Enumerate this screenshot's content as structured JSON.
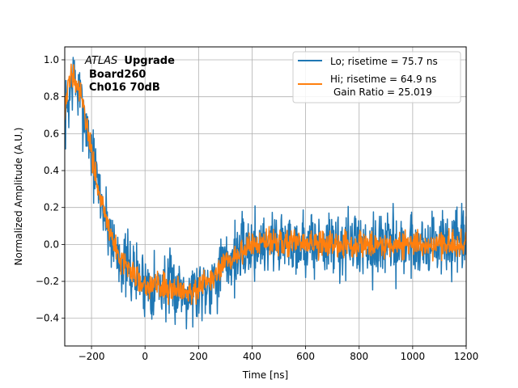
{
  "chart_data": {
    "type": "line",
    "title": "",
    "xlabel": "Time [ns]",
    "ylabel": "Normalized Amplitude (A.U.)",
    "xlim": [
      -300,
      1200
    ],
    "ylim": [
      -0.55,
      1.07
    ],
    "grid": true,
    "x_ticks": [
      -200,
      0,
      200,
      400,
      600,
      800,
      1000,
      1200
    ],
    "x_tick_labels": [
      "−200",
      "0",
      "200",
      "400",
      "600",
      "800",
      "1000",
      "1200"
    ],
    "y_ticks": [
      -0.4,
      -0.2,
      0.0,
      0.2,
      0.4,
      0.6,
      0.8,
      1.0
    ],
    "y_tick_labels": [
      "−0.4",
      "−0.2",
      "0.0",
      "0.2",
      "0.4",
      "0.6",
      "0.8",
      "1.0"
    ],
    "annotation": {
      "experiment": "ATLAS",
      "tag": "Upgrade",
      "line2": "Board260",
      "line3": "Ch016 70dB"
    },
    "legend_position": "top-right",
    "series": [
      {
        "name": "Lo; risetime = 75.7 ns",
        "color": "#1f77b4",
        "noise": 0.09,
        "x": [
          -300,
          -285,
          -275,
          -265,
          -255,
          -245,
          -230,
          -210,
          -190,
          -170,
          -150,
          -130,
          -110,
          -90,
          -70,
          -50,
          -30,
          -10,
          0,
          20,
          40,
          60,
          80,
          100,
          120,
          140,
          160,
          180,
          200,
          220,
          240,
          260,
          280,
          300,
          330,
          360,
          400,
          450,
          500,
          550,
          600,
          700,
          800,
          900,
          1000,
          1100,
          1200
        ],
        "y": [
          0.68,
          0.78,
          0.88,
          0.9,
          0.84,
          0.8,
          0.72,
          0.58,
          0.42,
          0.28,
          0.16,
          0.06,
          -0.02,
          -0.08,
          -0.12,
          -0.15,
          -0.18,
          -0.2,
          -0.21,
          -0.22,
          -0.22,
          -0.22,
          -0.23,
          -0.24,
          -0.24,
          -0.24,
          -0.25,
          -0.25,
          -0.24,
          -0.22,
          -0.2,
          -0.17,
          -0.14,
          -0.11,
          -0.07,
          -0.04,
          0.0,
          0.01,
          0.02,
          0.01,
          0.0,
          0.0,
          0.0,
          0.0,
          0.0,
          0.0,
          0.0
        ]
      },
      {
        "name": "Hi; risetime = 64.9 ns",
        "name_line2": "Gain Ratio = 25.019",
        "color": "#ff7f0e",
        "noise": 0.035,
        "x": [
          -300,
          -285,
          -275,
          -265,
          -255,
          -245,
          -230,
          -210,
          -190,
          -170,
          -150,
          -130,
          -110,
          -90,
          -70,
          -50,
          -30,
          -10,
          0,
          20,
          40,
          60,
          80,
          100,
          120,
          140,
          160,
          180,
          200,
          220,
          240,
          260,
          280,
          300,
          330,
          360,
          400,
          450,
          500,
          550,
          600,
          700,
          800,
          900,
          1000,
          1100,
          1200
        ],
        "y": [
          0.7,
          0.86,
          0.94,
          0.93,
          0.88,
          0.82,
          0.73,
          0.58,
          0.42,
          0.28,
          0.16,
          0.06,
          -0.02,
          -0.08,
          -0.12,
          -0.15,
          -0.18,
          -0.2,
          -0.21,
          -0.22,
          -0.22,
          -0.22,
          -0.23,
          -0.24,
          -0.24,
          -0.24,
          -0.25,
          -0.25,
          -0.24,
          -0.22,
          -0.2,
          -0.17,
          -0.14,
          -0.11,
          -0.07,
          -0.04,
          0.0,
          0.01,
          0.02,
          0.01,
          0.0,
          0.0,
          0.0,
          0.0,
          0.0,
          0.0,
          0.0
        ]
      }
    ]
  }
}
